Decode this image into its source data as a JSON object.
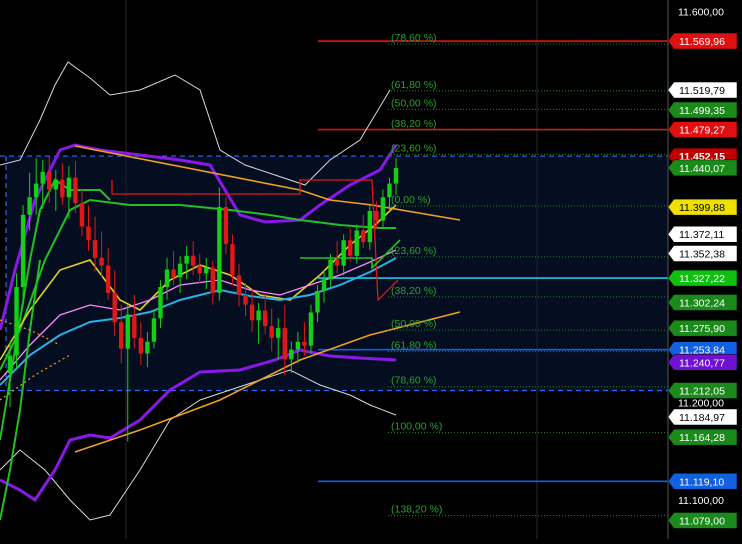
{
  "chart_data": {
    "type": "candlestick",
    "y_axis_labels": [
      "11.600,00",
      "11.200,00",
      "11.100,00"
    ],
    "ylim": [
      11060,
      11612
    ],
    "bands": {
      "upper_dashed": 11452.15,
      "lower_dashed": 11212.05
    },
    "fib_levels": [
      {
        "label": "(78,60 %)",
        "price": 11569.96
      },
      {
        "label": "(61,80 %)",
        "price": 11522.0
      },
      {
        "label": "(50,00 %)",
        "price": 11503.0
      },
      {
        "label": "(38,20 %)",
        "price": 11482.0
      },
      {
        "label": "(23,60 %)",
        "price": 11457.0
      },
      {
        "label": "(0,00 %)",
        "price": 11404.0
      },
      {
        "label": "(23,60 %)",
        "price": 11352.0
      },
      {
        "label": "(38,20 %)",
        "price": 11311.0
      },
      {
        "label": "(50,00 %)",
        "price": 11277.0
      },
      {
        "label": "(61,80 %)",
        "price": 11255.0
      },
      {
        "label": "(78,60 %)",
        "price": 11219.0
      },
      {
        "label": "(100,00 %)",
        "price": 11172.0
      },
      {
        "label": "(138,20 %)",
        "price": 11087.0
      }
    ],
    "horizontal_lines": [
      {
        "price": 11569.96,
        "color": "#e01010"
      },
      {
        "price": 11479.27,
        "color": "#e01010"
      },
      {
        "price": 11327.22,
        "color": "#1ec8e8"
      },
      {
        "price": 11253.84,
        "color": "#1060e0"
      },
      {
        "price": 11119.1,
        "color": "#1060e0"
      }
    ],
    "price_tags": [
      {
        "label": "11.569,96",
        "price": 11569.96,
        "bg": "#e01010",
        "fg": "#ffffff"
      },
      {
        "label": "11.519,79",
        "price": 11519.79,
        "bg": "#ffffff",
        "fg": "#000000"
      },
      {
        "label": "11.499,35",
        "price": 11499.35,
        "bg": "#1a8a1a",
        "fg": "#ffffff"
      },
      {
        "label": "11.479,27",
        "price": 11479.27,
        "bg": "#e01010",
        "fg": "#ffffff"
      },
      {
        "label": "11.452,15",
        "price": 11452.15,
        "bg": "#c00000",
        "fg": "#ffffff",
        "bold": true
      },
      {
        "label": "11.440,07",
        "price": 11440.07,
        "bg": "#1a8a1a",
        "fg": "#ffffff"
      },
      {
        "label": "11.399,88",
        "price": 11399.88,
        "bg": "#f0e000",
        "fg": "#000000"
      },
      {
        "label": "11.372,11",
        "price": 11372.11,
        "bg": "#ffffff",
        "fg": "#000000"
      },
      {
        "label": "11.352,38",
        "price": 11352.38,
        "bg": "#ffffff",
        "fg": "#000000"
      },
      {
        "label": "11.327,22",
        "price": 11327.22,
        "bg": "#10c010",
        "fg": "#ffffff"
      },
      {
        "label": "11.302,24",
        "price": 11302.24,
        "bg": "#1a8a1a",
        "fg": "#ffffff"
      },
      {
        "label": "11.275,90",
        "price": 11275.9,
        "bg": "#1a8a1a",
        "fg": "#ffffff"
      },
      {
        "label": "11.253,84",
        "price": 11253.84,
        "bg": "#1060e0",
        "fg": "#ffffff"
      },
      {
        "label": "11.240,77",
        "price": 11241.0,
        "bg": "#7010d0",
        "fg": "#ffffff"
      },
      {
        "label": "11.212,05",
        "price": 11212.05,
        "bg": "#1a8a1a",
        "fg": "#ffffff"
      },
      {
        "label": "11.184,97",
        "price": 11184.97,
        "bg": "#ffffff",
        "fg": "#000000"
      },
      {
        "label": "11.164,28",
        "price": 11164.28,
        "bg": "#1a8a1a",
        "fg": "#ffffff"
      },
      {
        "label": "11.119,10",
        "price": 11119.1,
        "bg": "#1060e0",
        "fg": "#ffffff"
      },
      {
        "label": "11.079,00",
        "price": 11079.0,
        "bg": "#1a8a1a",
        "fg": "#ffffff"
      }
    ],
    "candles": [
      [
        11230,
        11262,
        11195,
        11248
      ],
      [
        11248,
        11332,
        11235,
        11318
      ],
      [
        11318,
        11402,
        11298,
        11392
      ],
      [
        11392,
        11435,
        11376,
        11410
      ],
      [
        11410,
        11450,
        11392,
        11424
      ],
      [
        11424,
        11448,
        11398,
        11436
      ],
      [
        11436,
        11452,
        11404,
        11418
      ],
      [
        11418,
        11438,
        11396,
        11428
      ],
      [
        11428,
        11445,
        11402,
        11410
      ],
      [
        11410,
        11442,
        11388,
        11430
      ],
      [
        11430,
        11447,
        11394,
        11404
      ],
      [
        11404,
        11418,
        11370,
        11380
      ],
      [
        11380,
        11402,
        11355,
        11366
      ],
      [
        11366,
        11390,
        11334,
        11348
      ],
      [
        11348,
        11375,
        11328,
        11340
      ],
      [
        11340,
        11358,
        11305,
        11312
      ],
      [
        11312,
        11335,
        11268,
        11282
      ],
      [
        11282,
        11300,
        11240,
        11255
      ],
      [
        11255,
        11300,
        11160,
        11290
      ],
      [
        11290,
        11310,
        11255,
        11266
      ],
      [
        11266,
        11282,
        11238,
        11250
      ],
      [
        11250,
        11272,
        11236,
        11262
      ],
      [
        11262,
        11295,
        11255,
        11286
      ],
      [
        11286,
        11325,
        11276,
        11318
      ],
      [
        11318,
        11348,
        11305,
        11336
      ],
      [
        11336,
        11355,
        11320,
        11328
      ],
      [
        11328,
        11350,
        11312,
        11342
      ],
      [
        11342,
        11360,
        11326,
        11350
      ],
      [
        11350,
        11365,
        11330,
        11340
      ],
      [
        11340,
        11352,
        11322,
        11332
      ],
      [
        11332,
        11348,
        11316,
        11338
      ],
      [
        11338,
        11345,
        11300,
        11312
      ],
      [
        11312,
        11420,
        11304,
        11400
      ],
      [
        11400,
        11410,
        11352,
        11362
      ],
      [
        11362,
        11372,
        11320,
        11330
      ],
      [
        11330,
        11342,
        11298,
        11310
      ],
      [
        11310,
        11322,
        11288,
        11300
      ],
      [
        11300,
        11316,
        11272,
        11284
      ],
      [
        11284,
        11302,
        11260,
        11294
      ],
      [
        11294,
        11312,
        11270,
        11278
      ],
      [
        11278,
        11296,
        11252,
        11266
      ],
      [
        11266,
        11286,
        11244,
        11276
      ],
      [
        11276,
        11300,
        11228,
        11244
      ],
      [
        11244,
        11262,
        11230,
        11254
      ],
      [
        11254,
        11272,
        11240,
        11262
      ],
      [
        11262,
        11282,
        11248,
        11258
      ],
      [
        11258,
        11300,
        11250,
        11292
      ],
      [
        11292,
        11320,
        11282,
        11314
      ],
      [
        11314,
        11335,
        11302,
        11326
      ],
      [
        11326,
        11352,
        11318,
        11346
      ],
      [
        11346,
        11365,
        11332,
        11340
      ],
      [
        11340,
        11372,
        11330,
        11366
      ],
      [
        11366,
        11378,
        11344,
        11350
      ],
      [
        11350,
        11382,
        11342,
        11376
      ],
      [
        11376,
        11392,
        11358,
        11364
      ],
      [
        11364,
        11402,
        11356,
        11396
      ],
      [
        11396,
        11406,
        11378,
        11386
      ],
      [
        11386,
        11418,
        11380,
        11410
      ],
      [
        11410,
        11430,
        11396,
        11424
      ],
      [
        11424,
        11450,
        11412,
        11440
      ]
    ]
  }
}
